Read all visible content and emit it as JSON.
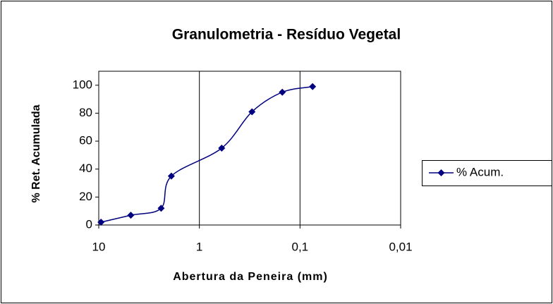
{
  "chart_data": {
    "type": "line",
    "title": "Granulometria - Resíduo Vegetal",
    "x_label": "Abertura da Peneira (mm)",
    "y_label": "% Ret. Acumulada",
    "x": [
      9.5,
      4.8,
      2.4,
      1.9,
      0.6,
      0.3,
      0.15,
      0.075
    ],
    "series": [
      {
        "name": "% Acum.",
        "color": "#000080",
        "values": [
          2,
          7,
          12,
          35,
          55,
          81,
          95,
          99
        ]
      }
    ],
    "xlim": [
      10,
      0.01
    ],
    "x_log": true,
    "x_reversed": true,
    "xticks": [
      10,
      1,
      {
        "value": 0.1,
        "label": "0,1"
      },
      {
        "value": 0.01,
        "label": "0,01"
      }
    ],
    "ylim": [
      0,
      110
    ],
    "yticks": [
      0,
      20,
      40,
      60,
      80,
      100
    ],
    "x_grid": true,
    "legend": "right"
  }
}
